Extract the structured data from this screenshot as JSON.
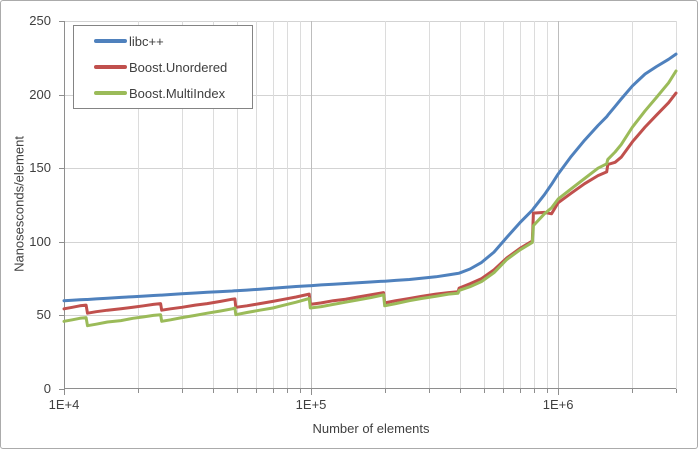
{
  "chart_data": {
    "type": "line",
    "title": "",
    "xlabel": "Number of elements",
    "ylabel": "Nanosesconds/element",
    "x_scale": "log",
    "xlim": [
      10000,
      3000000
    ],
    "ylim": [
      0,
      250
    ],
    "grid": true,
    "legend_position": "top-left",
    "x_ticks": [
      {
        "value": 10000,
        "label": "1E+4"
      },
      {
        "value": 100000,
        "label": "1E+5"
      },
      {
        "value": 1000000,
        "label": "1E+6"
      }
    ],
    "y_ticks": [
      {
        "value": 0,
        "label": "0"
      },
      {
        "value": 50,
        "label": "50"
      },
      {
        "value": 100,
        "label": "100"
      },
      {
        "value": 150,
        "label": "150"
      },
      {
        "value": 200,
        "label": "200"
      },
      {
        "value": 250,
        "label": "250"
      }
    ],
    "x_minor_gridlines": [
      20000,
      30000,
      40000,
      50000,
      60000,
      70000,
      80000,
      90000,
      200000,
      300000,
      400000,
      500000,
      600000,
      700000,
      800000,
      900000,
      2000000,
      3000000
    ],
    "x_major_gridlines": [
      100000,
      1000000
    ],
    "y_gridlines": [
      50,
      100,
      150,
      200,
      250
    ],
    "x": [
      10000,
      10800,
      11600,
      12289,
      12450,
      13500,
      15000,
      17000,
      19000,
      21000,
      23000,
      24593,
      24850,
      27000,
      30000,
      34000,
      38000,
      43000,
      48000,
      49157,
      49600,
      55000,
      62000,
      70000,
      78000,
      87000,
      98317,
      99300,
      110000,
      123000,
      138000,
      155000,
      174000,
      196613,
      198600,
      220000,
      250000,
      280000,
      320000,
      360000,
      393241,
      397200,
      440000,
      490000,
      550000,
      620000,
      700000,
      786433,
      794300,
      880000,
      940000,
      1000000,
      1130000,
      1280000,
      1450000,
      1572869,
      1588700,
      1700000,
      1800000,
      2000000,
      2250000,
      2500000,
      2800000,
      3000000
    ],
    "series": [
      {
        "name": "libc++",
        "color": "#4f81bd",
        "y": [
          60,
          60.3,
          60.6,
          60.8,
          60.8,
          61.2,
          61.7,
          62.2,
          62.7,
          63.1,
          63.5,
          63.8,
          63.8,
          64.2,
          64.7,
          65.2,
          65.7,
          66.2,
          66.6,
          66.7,
          66.7,
          67.2,
          67.8,
          68.4,
          69,
          69.6,
          70.2,
          70.2,
          70.7,
          71.2,
          71.7,
          72.2,
          72.7,
          73.2,
          73.2,
          73.8,
          74.4,
          75.2,
          76.2,
          77.5,
          78.5,
          78.7,
          81.5,
          86,
          93,
          103,
          113,
          121.5,
          122.5,
          132,
          139,
          146,
          158,
          169,
          179,
          185,
          186,
          192,
          197,
          206,
          214,
          219,
          224,
          227.5
        ]
      },
      {
        "name": "Boost.Unordered",
        "color": "#c0504d",
        "y": [
          54.5,
          55.5,
          56.5,
          57,
          51.5,
          52.5,
          53.5,
          54.5,
          55.5,
          56.5,
          57.5,
          58,
          53.5,
          54.5,
          55.5,
          57,
          58,
          59.5,
          61,
          61.2,
          55.5,
          56.5,
          58,
          59.5,
          61,
          62.5,
          64.5,
          57.5,
          58.5,
          60,
          61,
          62.5,
          64,
          65.5,
          58.5,
          60,
          61.5,
          63,
          64.5,
          65.5,
          66,
          68.5,
          71.5,
          75,
          81,
          89,
          95.5,
          100.5,
          119.5,
          120,
          119,
          126.5,
          133,
          139.5,
          145,
          147.5,
          152.5,
          154,
          157.5,
          168,
          178,
          186,
          194.5,
          201
        ]
      },
      {
        "name": "Boost.MultiIndex",
        "color": "#9bbb59",
        "y": [
          46,
          47,
          48,
          48.5,
          43,
          44,
          45.5,
          46.5,
          48,
          49,
          50,
          50.5,
          46,
          47,
          48.5,
          50,
          51.5,
          53,
          54.5,
          55,
          50.5,
          52,
          53.5,
          55,
          57,
          59,
          61.5,
          55,
          56,
          57.5,
          59,
          60.5,
          62,
          64,
          56.5,
          58,
          60,
          61.5,
          63,
          64.5,
          65,
          67,
          69.5,
          73,
          79,
          88,
          94.5,
          99.5,
          111,
          119,
          123,
          129,
          136,
          143,
          150,
          153,
          156,
          161,
          166,
          178,
          189,
          198,
          208,
          216
        ]
      }
    ],
    "colors": {
      "minor_gridline": "#dcdcdc",
      "major_gridline": "#bdbdbd",
      "y_gridline": "#d3d3d3",
      "axis_line": "#8e8e8e",
      "text": "#3f3f3f",
      "legend_border": "#848484",
      "chart_border": "#ababab"
    }
  }
}
